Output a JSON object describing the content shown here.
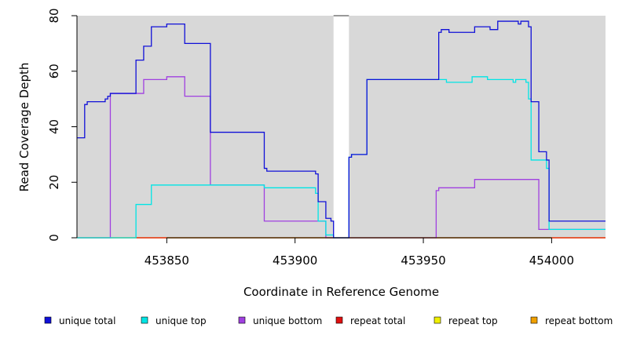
{
  "chart_data": {
    "type": "line",
    "xlabel": "Coordinate in Reference Genome",
    "ylabel": "Read Coverage Depth",
    "xlim": [
      453815,
      454021
    ],
    "ylim": [
      0,
      80
    ],
    "x_ticks": [
      453850,
      453900,
      453950,
      454000
    ],
    "x_tick_labels": [
      "453850",
      "453900",
      "453950",
      "454000"
    ],
    "y_ticks": [
      0,
      20,
      40,
      60,
      80
    ],
    "y_tick_labels": [
      "0",
      "20",
      "40",
      "60",
      "80"
    ],
    "gap": [
      453915,
      453921
    ],
    "background_color": "#d8d8d8",
    "step": true,
    "legend_position": "bottom",
    "series": [
      {
        "name": "unique total",
        "color": "#1010d8",
        "points": [
          [
            453815,
            36
          ],
          [
            453818,
            36
          ],
          [
            453818,
            48
          ],
          [
            453819,
            48
          ],
          [
            453819,
            49
          ],
          [
            453826,
            49
          ],
          [
            453826,
            50
          ],
          [
            453827,
            50
          ],
          [
            453827,
            51
          ],
          [
            453828,
            51
          ],
          [
            453828,
            52
          ],
          [
            453838,
            52
          ],
          [
            453838,
            64
          ],
          [
            453841,
            64
          ],
          [
            453841,
            69
          ],
          [
            453844,
            69
          ],
          [
            453844,
            76
          ],
          [
            453850,
            76
          ],
          [
            453850,
            77
          ],
          [
            453857,
            77
          ],
          [
            453857,
            70
          ],
          [
            453867,
            70
          ],
          [
            453867,
            38
          ],
          [
            453888,
            38
          ],
          [
            453888,
            25
          ],
          [
            453889,
            25
          ],
          [
            453889,
            24
          ],
          [
            453908,
            24
          ],
          [
            453908,
            23
          ],
          [
            453909,
            23
          ],
          [
            453909,
            13
          ],
          [
            453912,
            13
          ],
          [
            453912,
            7
          ],
          [
            453914,
            7
          ],
          [
            453914,
            6
          ],
          [
            453915,
            6
          ],
          [
            453915,
            0
          ],
          [
            453921,
            0
          ],
          [
            453921,
            29
          ],
          [
            453922,
            29
          ],
          [
            453922,
            30
          ],
          [
            453928,
            30
          ],
          [
            453928,
            57
          ],
          [
            453956,
            57
          ],
          [
            453956,
            74
          ],
          [
            453957,
            74
          ],
          [
            453957,
            75
          ],
          [
            453960,
            75
          ],
          [
            453960,
            74
          ],
          [
            453970,
            74
          ],
          [
            453970,
            76
          ],
          [
            453976,
            76
          ],
          [
            453976,
            75
          ],
          [
            453979,
            75
          ],
          [
            453979,
            78
          ],
          [
            453987,
            78
          ],
          [
            453987,
            77
          ],
          [
            453988,
            77
          ],
          [
            453988,
            78
          ],
          [
            453991,
            78
          ],
          [
            453991,
            76
          ],
          [
            453992,
            76
          ],
          [
            453992,
            49
          ],
          [
            453995,
            49
          ],
          [
            453995,
            31
          ],
          [
            453998,
            31
          ],
          [
            453998,
            28
          ],
          [
            453999,
            28
          ],
          [
            453999,
            6
          ],
          [
            454021,
            6
          ]
        ]
      },
      {
        "name": "unique top",
        "color": "#00e5e5",
        "points": [
          [
            453815,
            0
          ],
          [
            453838,
            0
          ],
          [
            453838,
            12
          ],
          [
            453844,
            12
          ],
          [
            453844,
            19
          ],
          [
            453888,
            19
          ],
          [
            453888,
            18
          ],
          [
            453908,
            18
          ],
          [
            453908,
            16
          ],
          [
            453909,
            16
          ],
          [
            453909,
            6
          ],
          [
            453912,
            6
          ],
          [
            453912,
            1
          ],
          [
            453915,
            1
          ],
          [
            453915,
            0
          ],
          [
            453921,
            0
          ],
          [
            453921,
            29
          ],
          [
            453922,
            29
          ],
          [
            453922,
            30
          ],
          [
            453928,
            30
          ],
          [
            453928,
            57
          ],
          [
            453956,
            57
          ],
          [
            453956,
            57
          ],
          [
            453959,
            57
          ],
          [
            453959,
            56
          ],
          [
            453969,
            56
          ],
          [
            453969,
            58
          ],
          [
            453975,
            58
          ],
          [
            453975,
            57
          ],
          [
            453985,
            57
          ],
          [
            453985,
            56
          ],
          [
            453986,
            56
          ],
          [
            453986,
            57
          ],
          [
            453990,
            57
          ],
          [
            453990,
            56
          ],
          [
            453991,
            56
          ],
          [
            453991,
            50
          ],
          [
            453992,
            50
          ],
          [
            453992,
            28
          ],
          [
            453998,
            28
          ],
          [
            453998,
            25
          ],
          [
            453999,
            25
          ],
          [
            453999,
            3
          ],
          [
            454021,
            3
          ]
        ]
      },
      {
        "name": "unique bottom",
        "color": "#a040e0",
        "points": [
          [
            453815,
            0
          ],
          [
            453828,
            0
          ],
          [
            453828,
            52
          ],
          [
            453841,
            52
          ],
          [
            453841,
            57
          ],
          [
            453850,
            57
          ],
          [
            453850,
            58
          ],
          [
            453857,
            58
          ],
          [
            453857,
            51
          ],
          [
            453867,
            51
          ],
          [
            453867,
            19
          ],
          [
            453888,
            19
          ],
          [
            453888,
            6
          ],
          [
            453912,
            6
          ],
          [
            453912,
            0
          ],
          [
            453955,
            0
          ],
          [
            453955,
            17
          ],
          [
            453956,
            17
          ],
          [
            453956,
            18
          ],
          [
            453970,
            18
          ],
          [
            453970,
            21
          ],
          [
            453986,
            21
          ],
          [
            453986,
            21
          ],
          [
            453995,
            21
          ],
          [
            453995,
            3
          ],
          [
            454021,
            3
          ]
        ]
      },
      {
        "name": "repeat total",
        "color": "#e01010",
        "points": [
          [
            453815,
            0
          ],
          [
            454021,
            0
          ]
        ]
      },
      {
        "name": "repeat top",
        "color": "#f0f000",
        "points": [
          [
            453815,
            0
          ],
          [
            454021,
            0
          ]
        ]
      },
      {
        "name": "repeat bottom",
        "color": "#f0a000",
        "points": [
          [
            453815,
            0
          ],
          [
            454021,
            0
          ]
        ]
      }
    ]
  }
}
